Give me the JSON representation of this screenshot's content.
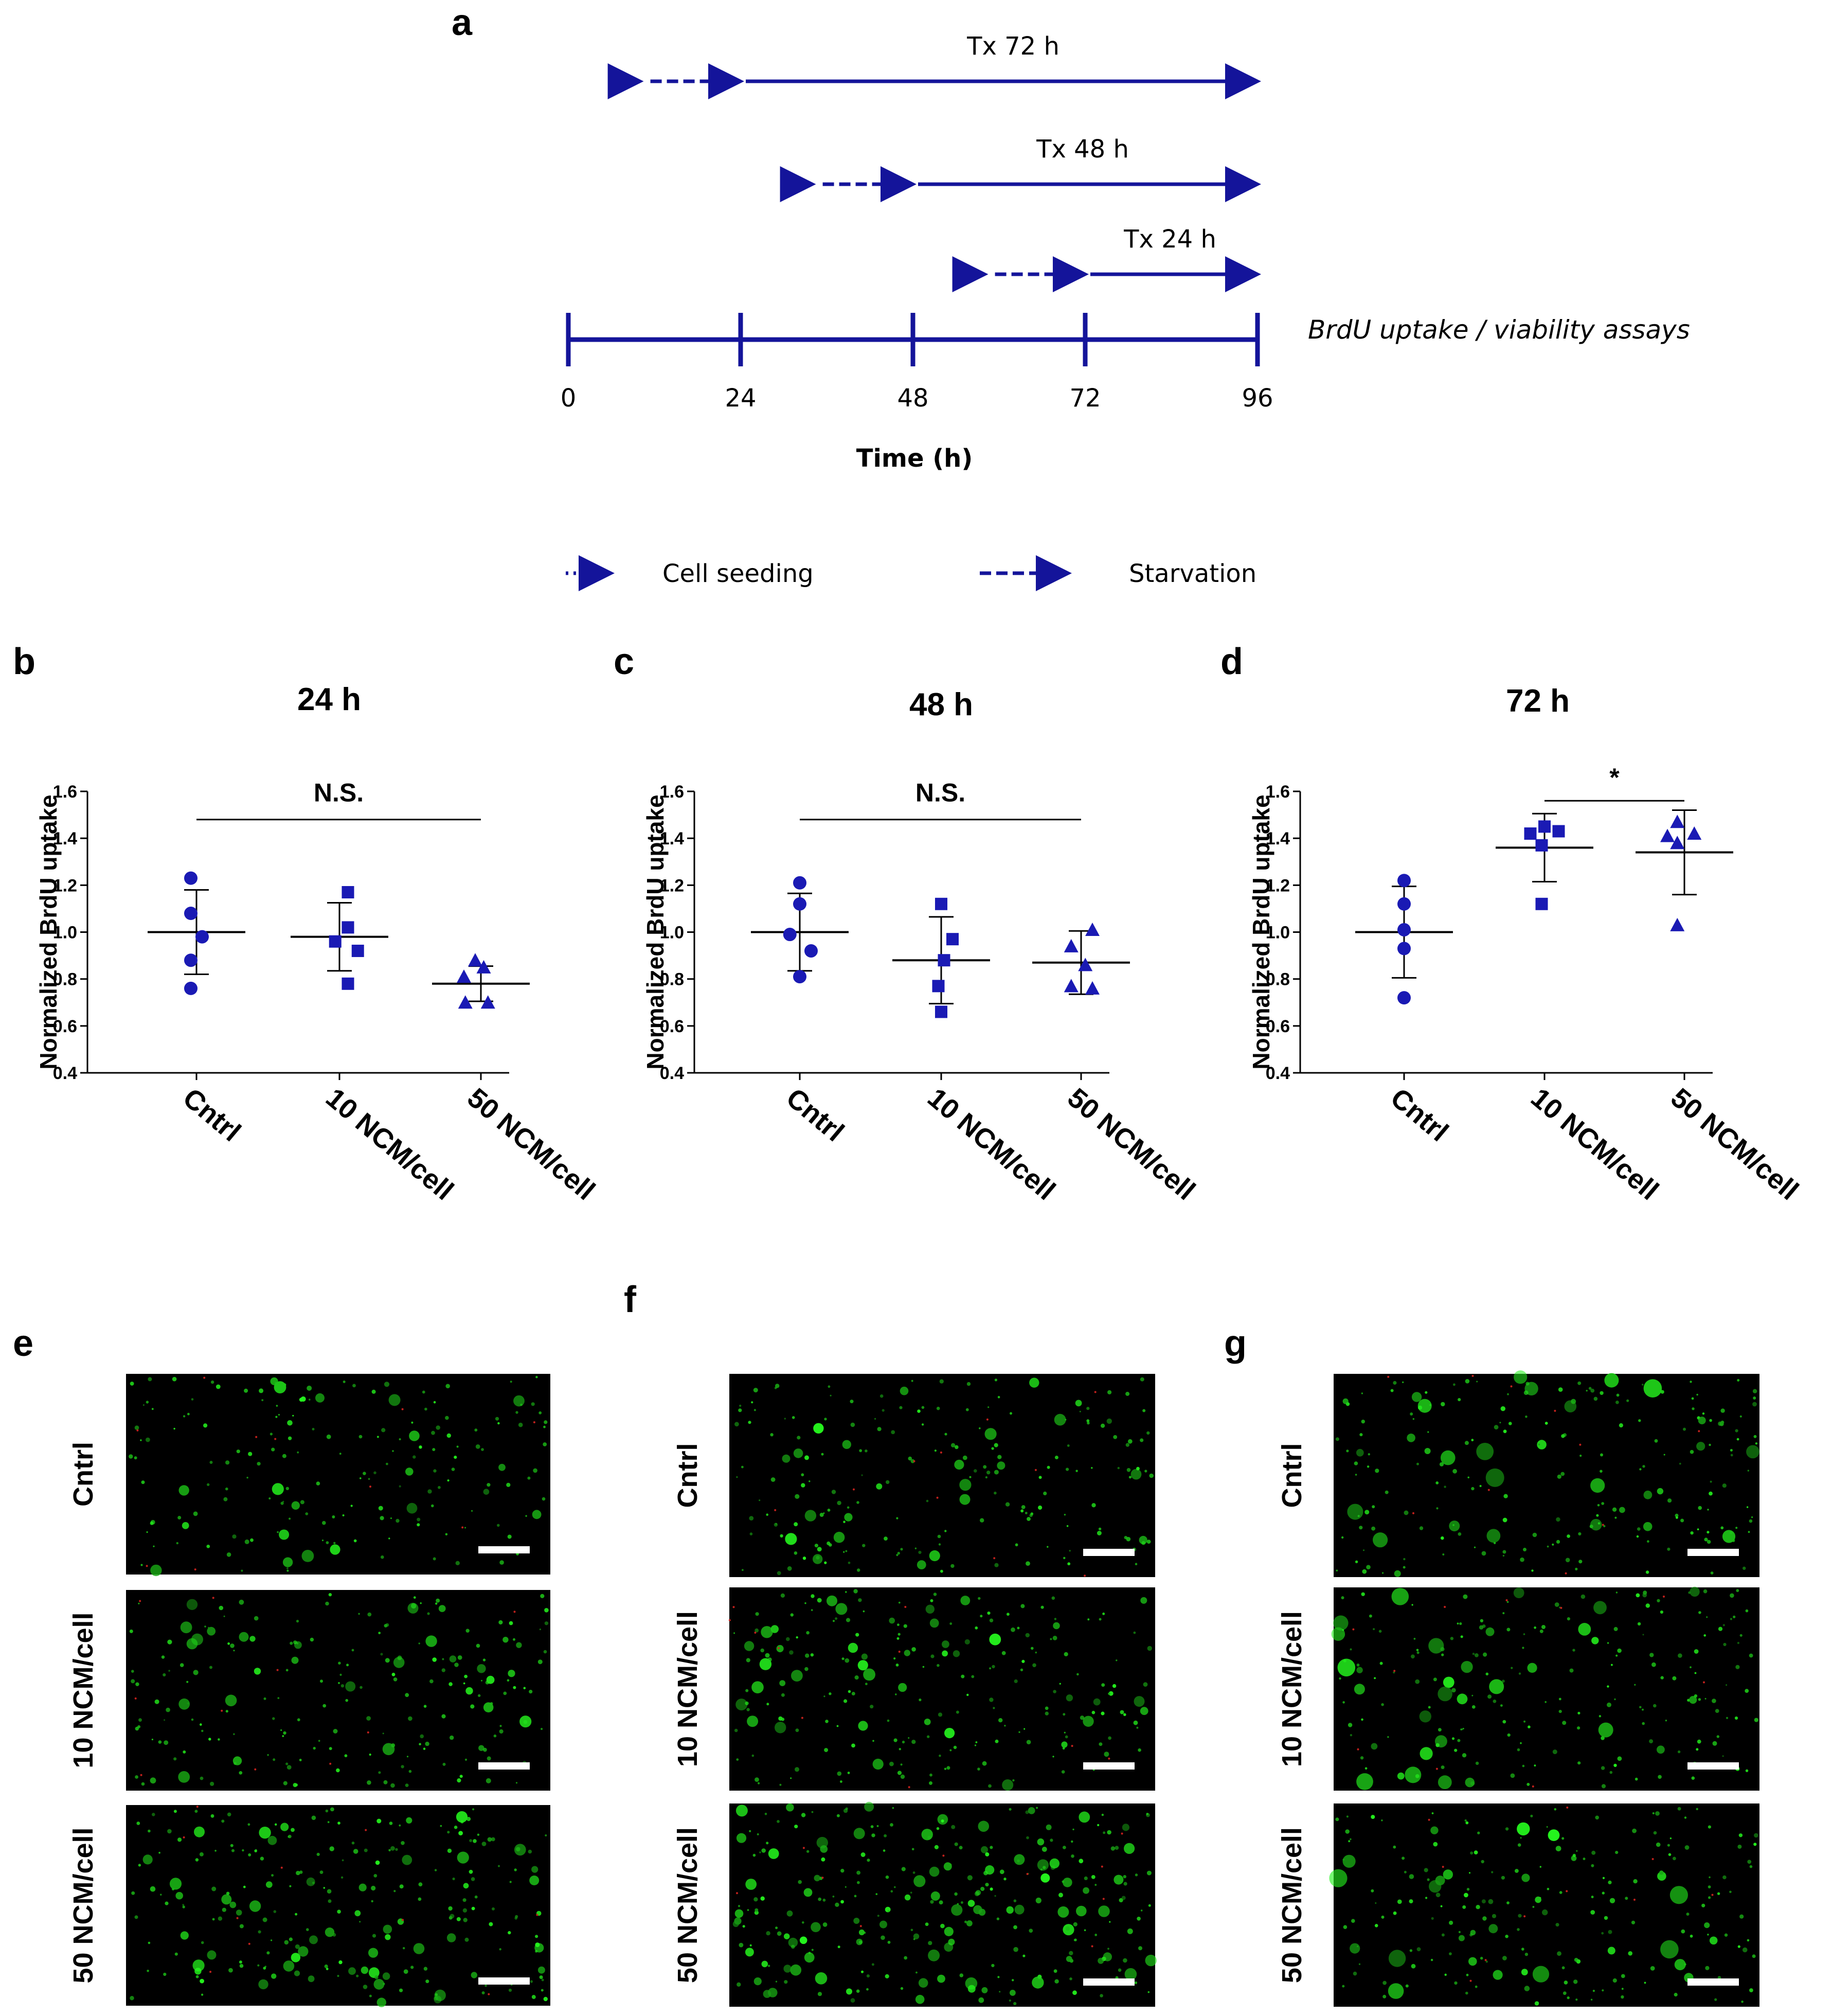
{
  "panels": {
    "a": "a",
    "b": "b",
    "c": "c",
    "d": "d",
    "e": "e",
    "f": "f",
    "g": "g"
  },
  "timeline": {
    "tracks": [
      {
        "label": "Tx 72 h",
        "seed_start": 0,
        "starve_start": 10,
        "treat_start": 24,
        "end": 96
      },
      {
        "label": "Tx 48 h",
        "seed_start": 24,
        "starve_start": 34,
        "treat_start": 48,
        "end": 96
      },
      {
        "label": "Tx 24 h",
        "seed_start": 48,
        "starve_start": 58,
        "treat_start": 72,
        "end": 96
      }
    ],
    "axis_ticks": [
      "0",
      "24",
      "48",
      "72",
      "96"
    ],
    "axis_label": "Time (h)",
    "endpoint_label": "BrdU uptake / viability assays",
    "legend": [
      {
        "style": "dotted",
        "label": "Cell seeding"
      },
      {
        "style": "dashed",
        "label": "Starvation"
      }
    ],
    "color": "#14149a"
  },
  "chart_data": [
    {
      "type": "scatter",
      "title": "24 h",
      "ylabel": "Normalized BrdU uptake",
      "ylim": [
        0.4,
        1.6
      ],
      "yticks": [
        "0.4",
        "0.6",
        "0.8",
        "1.0",
        "1.2",
        "1.4",
        "1.6"
      ],
      "categories": [
        "Cntrl",
        "10 NCM/cell",
        "50 NCM/cell"
      ],
      "markers": [
        "circle",
        "square",
        "triangle"
      ],
      "series": [
        {
          "points": [
            [
              -0.04,
              1.23
            ],
            [
              -0.04,
              1.08
            ],
            [
              0.04,
              0.98
            ],
            [
              -0.04,
              0.88
            ],
            [
              -0.04,
              0.76
            ]
          ],
          "mean": 1.0,
          "sd": 0.18
        },
        {
          "points": [
            [
              0.06,
              1.17
            ],
            [
              0.06,
              1.02
            ],
            [
              0.13,
              0.92
            ],
            [
              -0.03,
              0.96
            ],
            [
              0.06,
              0.78
            ]
          ],
          "mean": 0.98,
          "sd": 0.145
        },
        {
          "points": [
            [
              -0.04,
              0.88
            ],
            [
              -0.12,
              0.81
            ],
            [
              0.02,
              0.85
            ],
            [
              -0.11,
              0.7
            ],
            [
              0.05,
              0.7
            ]
          ],
          "mean": 0.78,
          "sd": 0.075
        }
      ],
      "significance": {
        "label": "N.S.",
        "from": 0,
        "to": 2,
        "y": 1.48
      }
    },
    {
      "type": "scatter",
      "title": "48 h",
      "ylabel": "Normalized BrdU uptake",
      "ylim": [
        0.4,
        1.6
      ],
      "yticks": [
        "0.4",
        "0.6",
        "0.8",
        "1.0",
        "1.2",
        "1.4",
        "1.6"
      ],
      "categories": [
        "Cntrl",
        "10 NCM/cell",
        "50 NCM/cell"
      ],
      "markers": [
        "circle",
        "square",
        "triangle"
      ],
      "series": [
        {
          "points": [
            [
              0.0,
              1.21
            ],
            [
              0.0,
              1.12
            ],
            [
              0.08,
              0.92
            ],
            [
              0.0,
              0.81
            ],
            [
              -0.07,
              0.99
            ]
          ],
          "mean": 1.0,
          "sd": 0.165
        },
        {
          "points": [
            [
              0.0,
              1.12
            ],
            [
              0.08,
              0.97
            ],
            [
              -0.02,
              0.77
            ],
            [
              0.0,
              0.66
            ],
            [
              0.02,
              0.88
            ]
          ],
          "mean": 0.88,
          "sd": 0.185
        },
        {
          "points": [
            [
              0.08,
              1.01
            ],
            [
              -0.07,
              0.94
            ],
            [
              0.03,
              0.86
            ],
            [
              0.08,
              0.76
            ],
            [
              -0.07,
              0.77
            ]
          ],
          "mean": 0.87,
          "sd": 0.135
        }
      ],
      "significance": {
        "label": "N.S.",
        "from": 0,
        "to": 2,
        "y": 1.48
      }
    },
    {
      "type": "scatter",
      "title": "72 h",
      "ylabel": "Normalized BrdU uptake",
      "ylim": [
        0.4,
        1.6
      ],
      "yticks": [
        "0.4",
        "0.6",
        "0.8",
        "1.0",
        "1.2",
        "1.4",
        "1.6"
      ],
      "categories": [
        "Cntrl",
        "10 NCM/cell",
        "50 NCM/cell"
      ],
      "markers": [
        "circle",
        "square",
        "triangle"
      ],
      "series": [
        {
          "points": [
            [
              0.0,
              1.22
            ],
            [
              0.0,
              1.12
            ],
            [
              0.0,
              1.01
            ],
            [
              0.0,
              0.93
            ],
            [
              0.0,
              0.72
            ]
          ],
          "mean": 1.0,
          "sd": 0.195
        },
        {
          "points": [
            [
              -0.1,
              1.42
            ],
            [
              0.0,
              1.45
            ],
            [
              0.1,
              1.43
            ],
            [
              -0.02,
              1.37
            ],
            [
              -0.02,
              1.12
            ]
          ],
          "mean": 1.36,
          "sd": 0.145
        },
        {
          "points": [
            [
              -0.12,
              1.41
            ],
            [
              -0.05,
              1.47
            ],
            [
              0.07,
              1.42
            ],
            [
              -0.05,
              1.38
            ],
            [
              -0.05,
              1.03
            ]
          ],
          "mean": 1.34,
          "sd": 0.18
        }
      ],
      "significance": {
        "label": "*",
        "from": 1,
        "to": 2,
        "y": 1.56
      }
    }
  ],
  "micrographs": {
    "row_labels": [
      "Cntrl",
      "10 NCM/cell",
      "50 NCM/cell"
    ],
    "density": [
      [
        0.35,
        0.45,
        0.55
      ],
      [
        0.5,
        0.6,
        0.55
      ],
      [
        0.7,
        1.0,
        0.55
      ]
    ]
  }
}
